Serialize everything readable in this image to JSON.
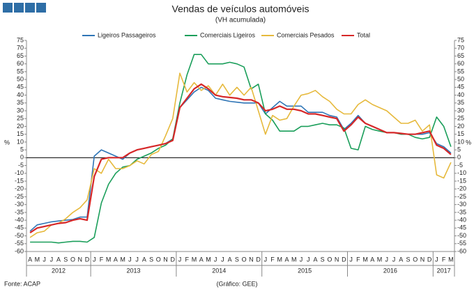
{
  "chart_data": {
    "type": "line",
    "title": "Vendas de veículos automóveis",
    "subtitle": "(VH acumulada)",
    "y_label": "%",
    "source": "Fonte: ACAP",
    "credit": "(Gráfico: GEE)",
    "categories": [
      "A",
      "M",
      "J",
      "J",
      "A",
      "S",
      "O",
      "N",
      "D",
      "J",
      "F",
      "M",
      "A",
      "M",
      "J",
      "J",
      "A",
      "S",
      "O",
      "N",
      "D",
      "J",
      "F",
      "M",
      "A",
      "M",
      "J",
      "J",
      "A",
      "S",
      "O",
      "N",
      "D",
      "J",
      "F",
      "M",
      "A",
      "M",
      "J",
      "J",
      "A",
      "S",
      "O",
      "N",
      "D",
      "J",
      "F",
      "M",
      "A",
      "M",
      "J",
      "J",
      "A",
      "S",
      "O",
      "N",
      "D",
      "J",
      "F",
      "M"
    ],
    "x_groups": [
      "2012",
      "2013",
      "2014",
      "2015",
      "2016",
      "2017"
    ],
    "ylim": [
      -60,
      75
    ],
    "yticks": [
      -60,
      -55,
      -50,
      -45,
      -40,
      -35,
      -30,
      -25,
      -20,
      -15,
      -10,
      -5,
      0,
      5,
      10,
      15,
      20,
      25,
      30,
      35,
      40,
      45,
      50,
      55,
      60,
      65,
      70,
      75
    ],
    "series": [
      {
        "name": "Ligeiros Passageiros",
        "color": "#2e75b6",
        "values": [
          -47,
          -43,
          -42,
          -41,
          -40.5,
          -40,
          -39.5,
          -38,
          -38,
          1,
          5,
          3,
          1,
          -1,
          3,
          5,
          6,
          7,
          8,
          9,
          12,
          32,
          37,
          42,
          45,
          43,
          38,
          37,
          36,
          35.5,
          35,
          35,
          35,
          28,
          32,
          36,
          33,
          33,
          33,
          29,
          29,
          29,
          27,
          26,
          18,
          22,
          27,
          22,
          20,
          18,
          16,
          16,
          15.5,
          15,
          15,
          15,
          16,
          9,
          7,
          3
        ]
      },
      {
        "name": "Comerciais Ligeiros",
        "color": "#1a9e5a",
        "values": [
          -54,
          -54,
          -54,
          -54,
          -54.5,
          -54,
          -53.5,
          -53.5,
          -54,
          -51,
          -29,
          -17,
          -10,
          -6,
          -5,
          -1,
          1,
          3,
          6,
          8,
          12,
          35,
          53,
          66,
          66,
          60,
          60,
          60,
          61,
          60,
          58,
          44,
          47,
          28,
          24,
          17,
          17,
          17,
          20,
          20,
          21,
          22,
          21,
          21,
          19,
          6,
          5,
          20,
          18,
          17,
          16,
          16,
          15,
          15,
          13,
          12,
          13,
          26,
          20,
          7
        ]
      },
      {
        "name": "Comerciais Pesados",
        "color": "#e6b93c",
        "values": [
          -51,
          -48,
          -47,
          -43,
          -42,
          -39,
          -35,
          -32,
          -27,
          -7,
          -10,
          -1,
          -7,
          -7,
          -5,
          -2,
          -4,
          2,
          4,
          14,
          25,
          54,
          42,
          48,
          43,
          46,
          40,
          47,
          40,
          45,
          40,
          45,
          30,
          15,
          27,
          24,
          25,
          33,
          40,
          41,
          43,
          39,
          36,
          31,
          28,
          28,
          34,
          37,
          34,
          32,
          30,
          26,
          22,
          22,
          24,
          17,
          21,
          -11,
          -13,
          -3
        ]
      },
      {
        "name": "Total",
        "color": "#d62728",
        "values": [
          -48,
          -45,
          -44,
          -43,
          -42,
          -41.5,
          -40,
          -39,
          -40,
          -12,
          -1,
          0,
          0,
          0,
          3,
          5,
          6,
          7,
          8,
          9,
          11,
          32,
          38,
          44,
          47,
          44,
          40,
          39,
          38.5,
          38,
          37,
          37,
          35,
          30,
          31,
          33,
          31,
          31,
          30,
          28,
          28,
          27,
          26,
          25,
          17,
          21,
          26,
          22,
          20,
          18,
          16,
          16,
          15.5,
          15,
          15,
          16,
          17,
          8,
          6,
          2
        ]
      }
    ]
  }
}
